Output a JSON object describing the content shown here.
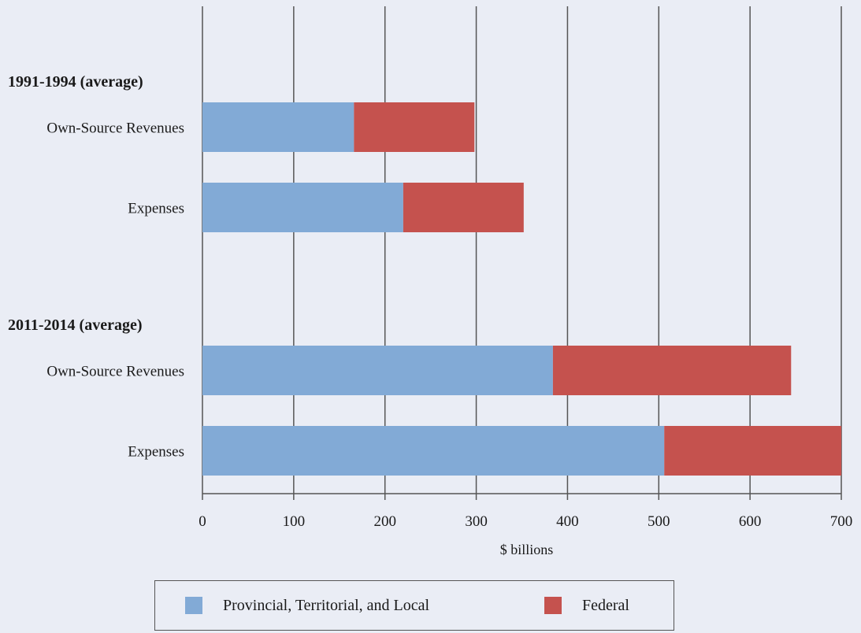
{
  "chart_data": {
    "type": "bar",
    "orientation": "horizontal",
    "stacked": true,
    "xlabel": "$ billions",
    "xlim": [
      0,
      700
    ],
    "xticks": [
      0,
      100,
      200,
      300,
      400,
      500,
      600,
      700
    ],
    "grid": true,
    "legend_position": "bottom",
    "groups": [
      {
        "label": "1991-1994 (average)",
        "categories": [
          "Own-Source Revenues",
          "Expenses"
        ]
      },
      {
        "label": "2011-2014 (average)",
        "categories": [
          "Own-Source Revenues",
          "Expenses"
        ]
      }
    ],
    "series": [
      {
        "name": "Provincial, Territorial, and Local",
        "color": "#82aad6",
        "values": [
          166,
          220,
          384,
          506
        ]
      },
      {
        "name": "Federal",
        "color": "#c5524e",
        "values": [
          132,
          132,
          261,
          194
        ]
      }
    ]
  }
}
